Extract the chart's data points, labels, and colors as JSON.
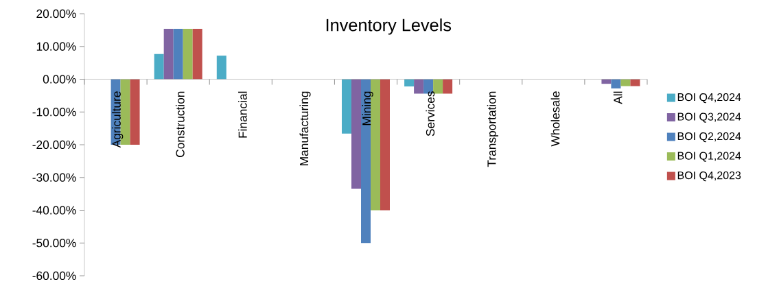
{
  "chart_data": {
    "type": "bar",
    "title": "Inventory Levels",
    "categories": [
      "Agriculture",
      "Construction",
      "Financial",
      "Manufacturing",
      "Mining",
      "Services",
      "Transportation",
      "Wholesale",
      "All"
    ],
    "series": [
      {
        "name": "BOI Q4,2024",
        "color": "#4bacc6",
        "values": [
          0,
          7.7,
          7.2,
          0,
          -16.6,
          -2.2,
          0,
          0,
          0
        ]
      },
      {
        "name": "BOI Q3,2024",
        "color": "#8064a2",
        "values": [
          0,
          15.4,
          0,
          0,
          -33.4,
          -4.4,
          0,
          0,
          -1.4
        ]
      },
      {
        "name": "BOI Q2,2024",
        "color": "#4f81bd",
        "values": [
          -20,
          15.4,
          0,
          0,
          -50,
          -4.4,
          0,
          0,
          -2.8
        ]
      },
      {
        "name": "BOI Q1,2024",
        "color": "#9bbb59",
        "values": [
          -20,
          15.4,
          0,
          0,
          -40,
          -4.4,
          0,
          0,
          -2.1
        ]
      },
      {
        "name": "BOI Q4,2023",
        "color": "#c0504d",
        "values": [
          -20,
          15.4,
          0,
          0,
          -40,
          -4.4,
          0,
          0,
          -2.1
        ]
      }
    ],
    "ylim": [
      -60,
      20
    ],
    "yticks": [
      {
        "value": -60,
        "label": "-60.00%"
      },
      {
        "value": -50,
        "label": "-50.00%"
      },
      {
        "value": -40,
        "label": "-40.00%"
      },
      {
        "value": -30,
        "label": "-30.00%"
      },
      {
        "value": -20,
        "label": "-20.00%"
      },
      {
        "value": -10,
        "label": "-10.00%"
      },
      {
        "value": 0,
        "label": "0.00%"
      },
      {
        "value": 10,
        "label": "10.00%"
      },
      {
        "value": 20,
        "label": "20.00%"
      }
    ],
    "legend": "right",
    "grid": false
  }
}
